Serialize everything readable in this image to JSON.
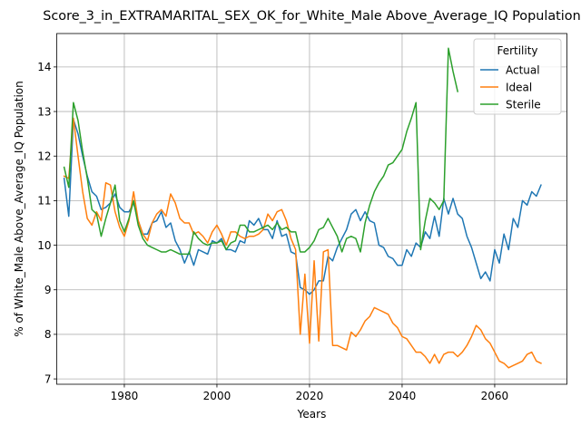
{
  "chart_data": {
    "type": "line",
    "title": "Score_3_in_EXTRAMARITAL_SEX_OK_for_White_Male Above_Average_IQ Population",
    "xlabel": "Years",
    "ylabel": "% of White_Male Above_Average_IQ Population",
    "xlim": [
      1965.4,
      2075.6
    ],
    "ylim": [
      6.88,
      14.75
    ],
    "xticks": [
      1980,
      2000,
      2020,
      2040,
      2060
    ],
    "yticks": [
      7,
      8,
      9,
      10,
      11,
      12,
      13,
      14
    ],
    "grid": true,
    "legend": {
      "title": "Fertility",
      "position": "top-right"
    },
    "series": [
      {
        "name": "Actual",
        "color": "#1f77b4",
        "x": [
          1967,
          1968,
          1969,
          1970,
          1971,
          1972,
          1973,
          1974,
          1975,
          1976,
          1977,
          1978,
          1979,
          1980,
          1981,
          1982,
          1983,
          1984,
          1985,
          1986,
          1987,
          1988,
          1989,
          1990,
          1991,
          1992,
          1993,
          1994,
          1995,
          1996,
          1997,
          1998,
          1999,
          2000,
          2001,
          2002,
          2003,
          2004,
          2005,
          2006,
          2007,
          2008,
          2009,
          2010,
          2011,
          2012,
          2013,
          2014,
          2015,
          2016,
          2017,
          2018,
          2019,
          2020,
          2021,
          2022,
          2023,
          2024,
          2025,
          2026,
          2027,
          2028,
          2029,
          2030,
          2031,
          2032,
          2033,
          2034,
          2035,
          2036,
          2037,
          2038,
          2039,
          2040,
          2041,
          2042,
          2043,
          2044,
          2045,
          2046,
          2047,
          2048,
          2049,
          2050,
          2051,
          2052,
          2053,
          2054,
          2055,
          2056,
          2057,
          2058,
          2059,
          2060,
          2061,
          2062,
          2063,
          2064,
          2065,
          2066,
          2067,
          2068,
          2069,
          2070
        ],
        "values": [
          11.5,
          10.65,
          12.82,
          12.5,
          12.0,
          11.55,
          11.2,
          11.1,
          10.8,
          10.85,
          10.95,
          11.15,
          10.85,
          10.75,
          10.75,
          10.95,
          10.55,
          10.25,
          10.25,
          10.5,
          10.55,
          10.75,
          10.4,
          10.5,
          10.1,
          9.9,
          9.6,
          9.85,
          9.55,
          9.9,
          9.85,
          9.8,
          10.1,
          10.05,
          10.15,
          9.9,
          9.9,
          9.85,
          10.1,
          10.05,
          10.55,
          10.45,
          10.6,
          10.35,
          10.35,
          10.15,
          10.55,
          10.2,
          10.25,
          9.85,
          9.8,
          9.05,
          9.0,
          8.9,
          9.0,
          9.2,
          9.2,
          9.75,
          9.65,
          9.95,
          10.15,
          10.35,
          10.7,
          10.8,
          10.55,
          10.75,
          10.55,
          10.5,
          10.0,
          9.95,
          9.75,
          9.7,
          9.55,
          9.55,
          9.9,
          9.75,
          10.05,
          9.95,
          10.3,
          10.15,
          10.65,
          10.2,
          11.05,
          10.7,
          11.05,
          10.7,
          10.6,
          10.2,
          9.95,
          9.6,
          9.25,
          9.4,
          9.2,
          9.9,
          9.6,
          10.25,
          9.9,
          10.6,
          10.4,
          11.0,
          10.9,
          11.2,
          11.1,
          11.35
        ]
      },
      {
        "name": "Ideal",
        "color": "#ff7f0e",
        "x": [
          1967,
          1968,
          1969,
          1970,
          1971,
          1972,
          1973,
          1974,
          1975,
          1976,
          1977,
          1978,
          1979,
          1980,
          1981,
          1982,
          1983,
          1984,
          1985,
          1986,
          1987,
          1988,
          1989,
          1990,
          1991,
          1992,
          1993,
          1994,
          1995,
          1996,
          1997,
          1998,
          1999,
          2000,
          2001,
          2002,
          2003,
          2004,
          2005,
          2006,
          2007,
          2008,
          2009,
          2010,
          2011,
          2012,
          2013,
          2014,
          2015,
          2016,
          2017,
          2018,
          2019,
          2020,
          2021,
          2022,
          2023,
          2024,
          2025,
          2026,
          2027,
          2028,
          2029,
          2030,
          2031,
          2032,
          2033,
          2034,
          2035,
          2036,
          2037,
          2038,
          2039,
          2040,
          2041,
          2042,
          2043,
          2044,
          2045,
          2046,
          2047,
          2048,
          2049,
          2050,
          2051,
          2052,
          2053,
          2054,
          2055,
          2056,
          2057,
          2058,
          2059,
          2060,
          2061,
          2062,
          2063,
          2064,
          2065,
          2066,
          2067,
          2068,
          2069,
          2070
        ],
        "values": [
          11.55,
          11.5,
          12.85,
          12.0,
          11.2,
          10.6,
          10.45,
          10.75,
          10.55,
          11.4,
          11.35,
          10.75,
          10.4,
          10.2,
          10.55,
          11.2,
          10.55,
          10.25,
          10.1,
          10.5,
          10.7,
          10.8,
          10.65,
          11.15,
          10.95,
          10.6,
          10.5,
          10.5,
          10.25,
          10.3,
          10.2,
          10.05,
          10.3,
          10.45,
          10.25,
          10.0,
          10.3,
          10.3,
          10.2,
          10.15,
          10.2,
          10.2,
          10.25,
          10.35,
          10.7,
          10.55,
          10.75,
          10.8,
          10.55,
          10.15,
          9.9,
          8.0,
          9.35,
          7.8,
          9.65,
          7.85,
          9.85,
          9.9,
          7.75,
          7.75,
          7.7,
          7.65,
          8.05,
          7.95,
          8.1,
          8.3,
          8.4,
          8.6,
          8.55,
          8.5,
          8.45,
          8.25,
          8.15,
          7.95,
          7.9,
          7.75,
          7.6,
          7.6,
          7.5,
          7.35,
          7.55,
          7.35,
          7.55,
          7.6,
          7.6,
          7.5,
          7.6,
          7.75,
          7.95,
          8.2,
          8.1,
          7.9,
          7.8,
          7.6,
          7.4,
          7.35,
          7.25,
          7.3,
          7.35,
          7.4,
          7.55,
          7.6,
          7.4,
          7.35
        ]
      },
      {
        "name": "Sterile",
        "color": "#2ca02c",
        "x": [
          1967,
          1968,
          1969,
          1970,
          1971,
          1972,
          1973,
          1974,
          1975,
          1976,
          1977,
          1978,
          1979,
          1980,
          1981,
          1982,
          1983,
          1984,
          1985,
          1986,
          1987,
          1988,
          1989,
          1990,
          1991,
          1992,
          1993,
          1994,
          1995,
          1996,
          1997,
          1998,
          1999,
          2000,
          2001,
          2002,
          2003,
          2004,
          2005,
          2006,
          2007,
          2008,
          2009,
          2010,
          2011,
          2012,
          2013,
          2014,
          2015,
          2016,
          2017,
          2018,
          2019,
          2020,
          2021,
          2022,
          2023,
          2024,
          2025,
          2026,
          2027,
          2028,
          2029,
          2030,
          2031,
          2032,
          2033,
          2034,
          2035,
          2036,
          2037,
          2038,
          2039,
          2040,
          2041,
          2042,
          2043,
          2044,
          2045,
          2046,
          2047,
          2048,
          2049,
          2050,
          2051,
          2052
        ],
        "values": [
          11.75,
          11.3,
          13.2,
          12.8,
          12.1,
          11.5,
          10.8,
          10.7,
          10.2,
          10.6,
          10.95,
          11.35,
          10.55,
          10.3,
          10.6,
          11.0,
          10.45,
          10.15,
          10.0,
          9.95,
          9.9,
          9.85,
          9.85,
          9.9,
          9.85,
          9.8,
          9.8,
          9.8,
          10.3,
          10.15,
          10.05,
          10.0,
          10.05,
          10.05,
          10.1,
          9.9,
          10.05,
          10.1,
          10.45,
          10.45,
          10.3,
          10.3,
          10.35,
          10.4,
          10.45,
          10.35,
          10.5,
          10.35,
          10.4,
          10.3,
          10.3,
          9.85,
          9.85,
          9.95,
          10.1,
          10.35,
          10.4,
          10.6,
          10.4,
          10.2,
          9.85,
          10.15,
          10.2,
          10.15,
          9.85,
          10.5,
          10.9,
          11.2,
          11.4,
          11.55,
          11.8,
          11.85,
          12.0,
          12.15,
          12.55,
          12.85,
          13.2,
          9.9,
          10.55,
          11.05,
          10.95,
          10.8,
          11.0,
          14.42,
          13.9,
          13.45
        ]
      }
    ]
  }
}
